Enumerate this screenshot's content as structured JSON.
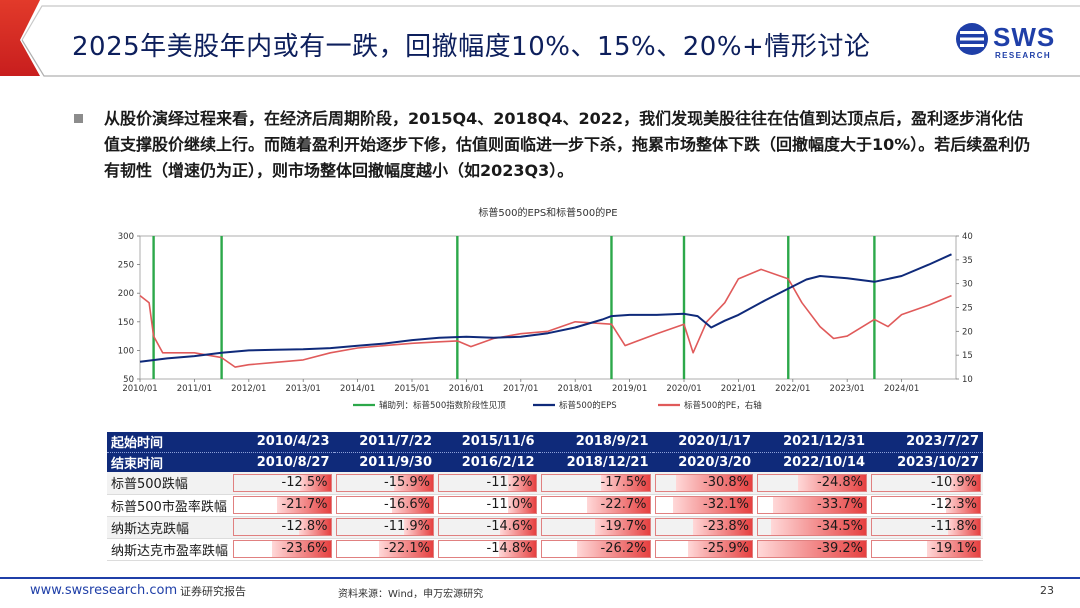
{
  "header": {
    "title": "2025年美股年内或有一跌，回撤幅度10%、15%、20%+情形讨论",
    "logo_text": "SWS",
    "logo_sub": "RESEARCH"
  },
  "bullet": {
    "text": "从股价演绎过程来看，在经济后周期阶段，2015Q4、2018Q4、2022，我们发现美股往往在估值到达顶点后，盈利逐步消化估值支撑股价继续上行。而随着盈利开始逐步下修，估值则面临进一步下杀，拖累市场整体下跌（回撤幅度大于10%）。若后续盈利仍有韧性（增速仍为正），则市场整体回撤幅度越小（如2023Q3）。"
  },
  "chart_data": {
    "type": "line",
    "title": "标普500的EPS和标普500的PE",
    "x_range": [
      "2010/01",
      "2024/12"
    ],
    "x_ticks": [
      "2010/01",
      "2011/01",
      "2012/01",
      "2013/01",
      "2014/01",
      "2015/01",
      "2016/01",
      "2017/01",
      "2018/01",
      "2019/01",
      "2020/01",
      "2021/01",
      "2022/01",
      "2023/01",
      "2024/01"
    ],
    "y_left": {
      "range": [
        50,
        300
      ],
      "ticks": [
        "50",
        "100",
        "150",
        "200",
        "250",
        "300"
      ]
    },
    "y_right": {
      "range": [
        10,
        40
      ],
      "ticks": [
        "10",
        "15",
        "20",
        "25",
        "30",
        "35",
        "40"
      ]
    },
    "legend": [
      "辅助列：标普500指数阶段性见顶",
      "标普500的EPS",
      "标普500的PE，右轴"
    ],
    "legend_position": "bottom",
    "peak_markers": [
      "2010/04",
      "2011/07",
      "2015/11",
      "2018/09",
      "2020/01",
      "2021/12",
      "2023/07"
    ],
    "series": [
      {
        "name": "标普500的EPS",
        "axis": "left",
        "color": "#0f2a7a",
        "points": [
          [
            "2010/01",
            80
          ],
          [
            "2010/07",
            86
          ],
          [
            "2011/01",
            90
          ],
          [
            "2011/07",
            96
          ],
          [
            "2012/01",
            100
          ],
          [
            "2012/07",
            101
          ],
          [
            "2013/01",
            102
          ],
          [
            "2013/07",
            104
          ],
          [
            "2014/01",
            108
          ],
          [
            "2014/07",
            112
          ],
          [
            "2015/01",
            118
          ],
          [
            "2015/07",
            122
          ],
          [
            "2016/01",
            124
          ],
          [
            "2016/07",
            122
          ],
          [
            "2017/01",
            124
          ],
          [
            "2017/07",
            130
          ],
          [
            "2018/01",
            140
          ],
          [
            "2018/07",
            154
          ],
          [
            "2018/09",
            160
          ],
          [
            "2019/01",
            162
          ],
          [
            "2019/07",
            162
          ],
          [
            "2020/01",
            164
          ],
          [
            "2020/04",
            160
          ],
          [
            "2020/07",
            140
          ],
          [
            "2020/10",
            152
          ],
          [
            "2021/01",
            162
          ],
          [
            "2021/07",
            188
          ],
          [
            "2021/12",
            208
          ],
          [
            "2022/04",
            224
          ],
          [
            "2022/07",
            230
          ],
          [
            "2023/01",
            226
          ],
          [
            "2023/07",
            220
          ],
          [
            "2024/01",
            230
          ],
          [
            "2024/07",
            250
          ],
          [
            "2024/12",
            268
          ]
        ]
      },
      {
        "name": "标普500的PE，右轴",
        "axis": "right",
        "color": "#e05a5a",
        "points": [
          [
            "2010/01",
            27.5
          ],
          [
            "2010/03",
            26
          ],
          [
            "2010/04",
            19
          ],
          [
            "2010/06",
            15.5
          ],
          [
            "2011/01",
            15.5
          ],
          [
            "2011/07",
            14.5
          ],
          [
            "2011/10",
            12.5
          ],
          [
            "2012/01",
            13
          ],
          [
            "2012/07",
            13.5
          ],
          [
            "2013/01",
            14
          ],
          [
            "2013/07",
            15.5
          ],
          [
            "2014/01",
            16.5
          ],
          [
            "2014/07",
            17
          ],
          [
            "2015/01",
            17.5
          ],
          [
            "2015/07",
            17.8
          ],
          [
            "2015/11",
            18
          ],
          [
            "2016/02",
            16.8
          ],
          [
            "2016/07",
            18.5
          ],
          [
            "2017/01",
            19.5
          ],
          [
            "2017/07",
            20
          ],
          [
            "2018/01",
            22
          ],
          [
            "2018/09",
            21.5
          ],
          [
            "2018/12",
            17
          ],
          [
            "2019/07",
            19.5
          ],
          [
            "2020/01",
            21.5
          ],
          [
            "2020/03",
            15.5
          ],
          [
            "2020/06",
            22
          ],
          [
            "2020/10",
            26
          ],
          [
            "2021/01",
            31
          ],
          [
            "2021/06",
            33
          ],
          [
            "2021/12",
            31
          ],
          [
            "2022/03",
            26
          ],
          [
            "2022/07",
            21
          ],
          [
            "2022/10",
            18.5
          ],
          [
            "2023/01",
            19
          ],
          [
            "2023/07",
            22.5
          ],
          [
            "2023/10",
            21
          ],
          [
            "2024/01",
            23.5
          ],
          [
            "2024/07",
            25.5
          ],
          [
            "2024/12",
            27.5
          ]
        ]
      }
    ]
  },
  "table": {
    "start_label": "起始时间",
    "end_label": "结束时间",
    "start_dates": [
      "2010/4/23",
      "2011/7/22",
      "2015/11/6",
      "2018/9/21",
      "2020/1/17",
      "2021/12/31",
      "2023/7/27"
    ],
    "end_dates": [
      "2010/8/27",
      "2011/9/30",
      "2016/2/12",
      "2018/12/21",
      "2020/3/20",
      "2022/10/14",
      "2023/10/27"
    ],
    "rows": [
      {
        "label": "标普500跌幅",
        "values": [
          "-12.5%",
          "-15.9%",
          "-11.2%",
          "-17.5%",
          "-30.8%",
          "-24.8%",
          "-10.9%"
        ],
        "magnitudes": [
          12.5,
          15.9,
          11.2,
          17.5,
          30.8,
          24.8,
          10.9
        ]
      },
      {
        "label": "标普500市盈率跌幅",
        "values": [
          "-21.7%",
          "-16.6%",
          "-11.0%",
          "-22.7%",
          "-32.1%",
          "-33.7%",
          "-12.3%"
        ],
        "magnitudes": [
          21.7,
          16.6,
          11.0,
          22.7,
          32.1,
          33.7,
          12.3
        ]
      },
      {
        "label": "纳斯达克跌幅",
        "values": [
          "-12.8%",
          "-11.9%",
          "-14.6%",
          "-19.7%",
          "-23.8%",
          "-34.5%",
          "-11.8%"
        ],
        "magnitudes": [
          12.8,
          11.9,
          14.6,
          19.7,
          23.8,
          34.5,
          11.8
        ]
      },
      {
        "label": "纳斯达克市盈率跌幅",
        "values": [
          "-23.6%",
          "-22.1%",
          "-14.8%",
          "-26.2%",
          "-25.9%",
          "-39.2%",
          "-19.1%"
        ],
        "magnitudes": [
          23.6,
          22.1,
          14.8,
          26.2,
          25.9,
          39.2,
          19.1
        ]
      }
    ],
    "bar_max": 39.2
  },
  "footer": {
    "url": "www.swsresearch.com",
    "doc_type": "证券研究报告",
    "source": "资料来源：Wind，申万宏源研究",
    "page": "23"
  },
  "colors": {
    "brand_blue": "#1f3fa8",
    "title_navy": "#0d1f5c",
    "accent_red": "#e03030",
    "peak_green": "#2ca84a"
  }
}
